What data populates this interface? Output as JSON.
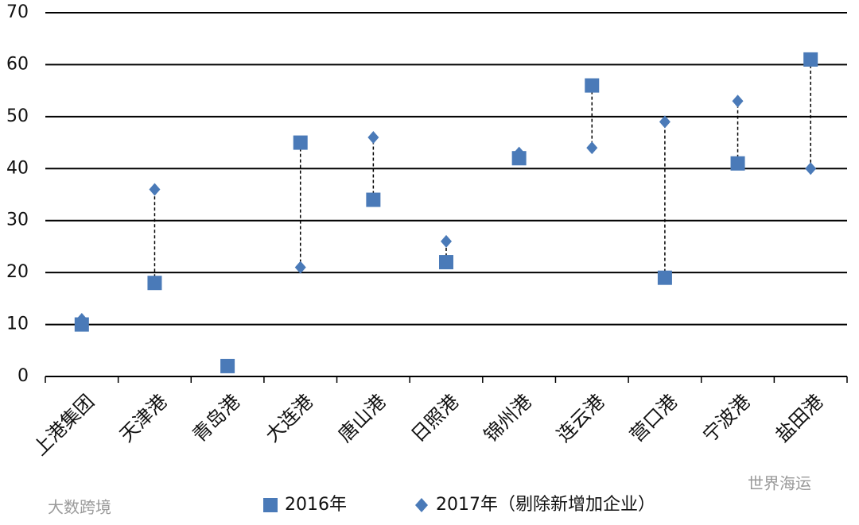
{
  "chart_data": {
    "type": "dumbbell",
    "categories": [
      "上港集团",
      "天津港",
      "青岛港",
      "大连港",
      "唐山港",
      "日照港",
      "锦州港",
      "连云港",
      "营口港",
      "宁波港",
      "盐田港"
    ],
    "series": [
      {
        "name": "2016年",
        "color": "#4a7ab8",
        "marker": "square",
        "values": [
          10,
          18,
          2,
          45,
          34,
          22,
          42,
          56,
          19,
          41,
          61
        ]
      },
      {
        "name": "2017年（剔除新增加企业）",
        "color": "#4a7ab8",
        "marker": "diamond",
        "values": [
          11,
          36,
          null,
          21,
          46,
          26,
          43,
          44,
          49,
          53,
          40
        ]
      }
    ],
    "ylim": [
      0,
      70
    ],
    "yticks": [
      0,
      10,
      20,
      30,
      40,
      50,
      60,
      70
    ],
    "grid": true,
    "connector": "dashed",
    "watermarks": [
      "大数跨境",
      "世界海运"
    ]
  }
}
